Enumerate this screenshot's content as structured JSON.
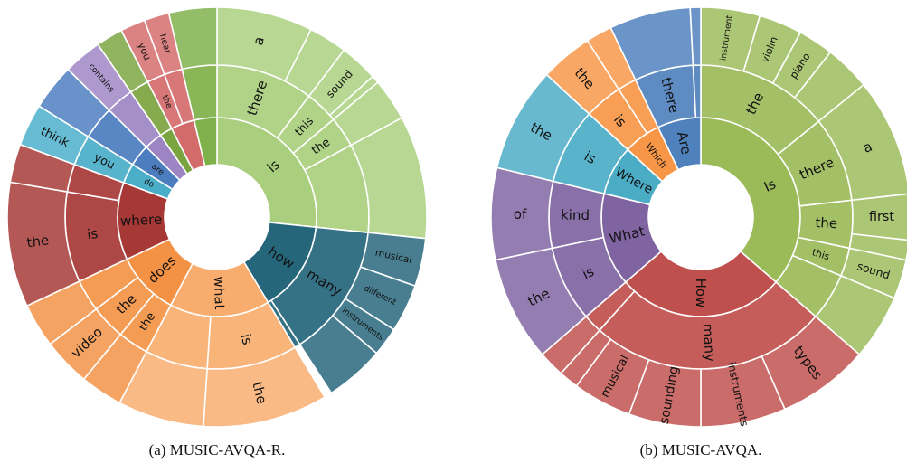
{
  "chart_data": [
    {
      "type": "sunburst",
      "caption": "(a) MUSIC-AVQA-R.",
      "rotation_deg": 0,
      "nodes": [
        {
          "label": "is",
          "value": 18,
          "color": "#a9cf7e",
          "children": [
            {
              "label": "there",
              "value": 7,
              "children": [
                {
                  "label": "a",
                  "value": 5
                },
                {
                  "label": "",
                  "value": 2
                }
              ]
            },
            {
              "label": "this",
              "value": 2.4,
              "children": [
                {
                  "label": "sound",
                  "value": 2
                },
                {
                  "label": "",
                  "value": 0.4
                }
              ]
            },
            {
              "label": "the",
              "value": 2.2,
              "children": [
                {
                  "label": "",
                  "value": 2.2
                }
              ]
            },
            {
              "label": "",
              "value": 6.4,
              "children": [
                {
                  "label": "",
                  "value": 6.4
                }
              ]
            }
          ]
        },
        {
          "label": "how",
          "value": 10,
          "color": "#25667a",
          "children": [
            {
              "label": "many",
              "value": 9.6,
              "children": [
                {
                  "label": "musical",
                  "value": 2.5
                },
                {
                  "label": "different",
                  "value": 2.5
                },
                {
                  "label": "instruments",
                  "value": 1.5
                },
                {
                  "label": "",
                  "value": 3.1
                }
              ]
            },
            {
              "label": "",
              "value": 0.4
            }
          ]
        },
        {
          "label": "what",
          "value": 11,
          "color": "#f8ad6e",
          "children": [
            {
              "label": "is",
              "value": 6.5,
              "children": [
                {
                  "label": "the",
                  "value": 6.5
                }
              ]
            },
            {
              "label": "",
              "value": 4.5,
              "children": [
                {
                  "label": "",
                  "value": 4.5
                }
              ]
            }
          ]
        },
        {
          "label": "does",
          "value": 7,
          "color": "#f39245",
          "children": [
            {
              "label": "the",
              "value": 2.2,
              "children": [
                {
                  "label": "",
                  "value": 2.2
                }
              ]
            },
            {
              "label": "the",
              "value": 2.5,
              "children": [
                {
                  "label": "video",
                  "value": 2.5
                }
              ]
            },
            {
              "label": "",
              "value": 2.3,
              "children": [
                {
                  "label": "",
                  "value": 2.3
                }
              ]
            }
          ]
        },
        {
          "label": "where",
          "value": 8.5,
          "color": "#a63836",
          "children": [
            {
              "label": "is",
              "value": 6.5,
              "children": [
                {
                  "label": "the",
                  "value": 6.5
                }
              ]
            },
            {
              "label": "",
              "value": 2,
              "children": [
                {
                  "label": "",
                  "value": 2
                }
              ]
            }
          ]
        },
        {
          "label": "do",
          "value": 2.2,
          "color": "#4aaec9",
          "children": [
            {
              "label": "you",
              "value": 2.2,
              "children": [
                {
                  "label": "think",
                  "value": 2.2
                }
              ]
            }
          ]
        },
        {
          "label": "are",
          "value": 2.4,
          "color": "#4b7dbf",
          "children": [
            {
              "label": "",
              "value": 2.4,
              "children": [
                {
                  "label": "",
                  "value": 2.4
                }
              ]
            }
          ]
        },
        {
          "label": "",
          "value": 2,
          "color": "#9d85c3",
          "children": [
            {
              "label": "",
              "value": 2,
              "children": [
                {
                  "label": "contains",
                  "value": 2
                }
              ]
            }
          ]
        },
        {
          "label": "",
          "value": 1.4,
          "color": "#7aa43f",
          "children": [
            {
              "label": "",
              "value": 1.4,
              "children": [
                {
                  "label": "",
                  "value": 1.4
                }
              ]
            }
          ]
        },
        {
          "label": "",
          "value": 2.6,
          "color": "#d46b6b",
          "children": [
            {
              "label": "the",
              "value": 1.3,
              "children": [
                {
                  "label": "you",
                  "value": 1.3
                }
              ]
            },
            {
              "label": "",
              "value": 1.3,
              "children": [
                {
                  "label": "hear",
                  "value": 1.3
                }
              ]
            }
          ]
        },
        {
          "label": "",
          "value": 2.5,
          "color": "#7fb14a",
          "children": [
            {
              "label": "",
              "value": 2.5,
              "children": [
                {
                  "label": "",
                  "value": 2.5
                }
              ]
            }
          ]
        }
      ]
    },
    {
      "type": "sunburst",
      "caption": "(b) MUSIC-AVQA.",
      "rotation_deg": 0,
      "nodes": [
        {
          "label": "Is",
          "value": 36,
          "color": "#9bbb59",
          "children": [
            {
              "label": "the",
              "value": 14,
              "children": [
                {
                  "label": "instrument",
                  "value": 4.5
                },
                {
                  "label": "violin",
                  "value": 3.3
                },
                {
                  "label": "piano",
                  "value": 2.7
                },
                {
                  "label": "",
                  "value": 3.5
                }
              ]
            },
            {
              "label": "there",
              "value": 9,
              "children": [
                {
                  "label": "a",
                  "value": 9
                }
              ]
            },
            {
              "label": "the",
              "value": 5,
              "children": [
                {
                  "label": "first",
                  "value": 3.5
                },
                {
                  "label": "",
                  "value": 1.5
                }
              ]
            },
            {
              "label": "this",
              "value": 3,
              "children": [
                {
                  "label": "sound",
                  "value": 3
                }
              ]
            },
            {
              "label": "",
              "value": 5,
              "children": [
                {
                  "label": "",
                  "value": 5
                }
              ]
            }
          ]
        },
        {
          "label": "How",
          "value": 27,
          "color": "#c0504d",
          "children": [
            {
              "label": "many",
              "value": 25,
              "children": [
                {
                  "label": "types",
                  "value": 7
                },
                {
                  "label": "instruments",
                  "value": 6.5
                },
                {
                  "label": "sounding",
                  "value": 5.5
                },
                {
                  "label": "musical",
                  "value": 4.5
                },
                {
                  "label": "",
                  "value": 1.5
                }
              ]
            },
            {
              "label": "",
              "value": 2,
              "children": [
                {
                  "label": "",
                  "value": 2
                }
              ]
            }
          ]
        },
        {
          "label": "What",
          "value": 15,
          "color": "#8064a2",
          "children": [
            {
              "label": "is",
              "value": 8,
              "children": [
                {
                  "label": "the",
                  "value": 8
                }
              ]
            },
            {
              "label": "kind",
              "value": 7,
              "children": [
                {
                  "label": "of",
                  "value": 7
                }
              ]
            }
          ]
        },
        {
          "label": "Where",
          "value": 8,
          "color": "#4bacc6",
          "children": [
            {
              "label": "is",
              "value": 8,
              "children": [
                {
                  "label": "the",
                  "value": 8
                }
              ]
            }
          ]
        },
        {
          "label": "Which",
          "value": 6,
          "color": "#f79646",
          "children": [
            {
              "label": "is",
              "value": 4,
              "children": [
                {
                  "label": "the",
                  "value": 4
                }
              ]
            },
            {
              "label": "",
              "value": 2,
              "children": [
                {
                  "label": "",
                  "value": 2
                }
              ]
            }
          ]
        },
        {
          "label": "Are",
          "value": 7,
          "color": "#4f81bd",
          "children": [
            {
              "label": "there",
              "value": 6.2,
              "children": [
                {
                  "label": "",
                  "value": 6.2
                }
              ]
            },
            {
              "label": "",
              "value": 0.8,
              "children": [
                {
                  "label": "",
                  "value": 0.8
                }
              ]
            }
          ]
        }
      ]
    }
  ]
}
